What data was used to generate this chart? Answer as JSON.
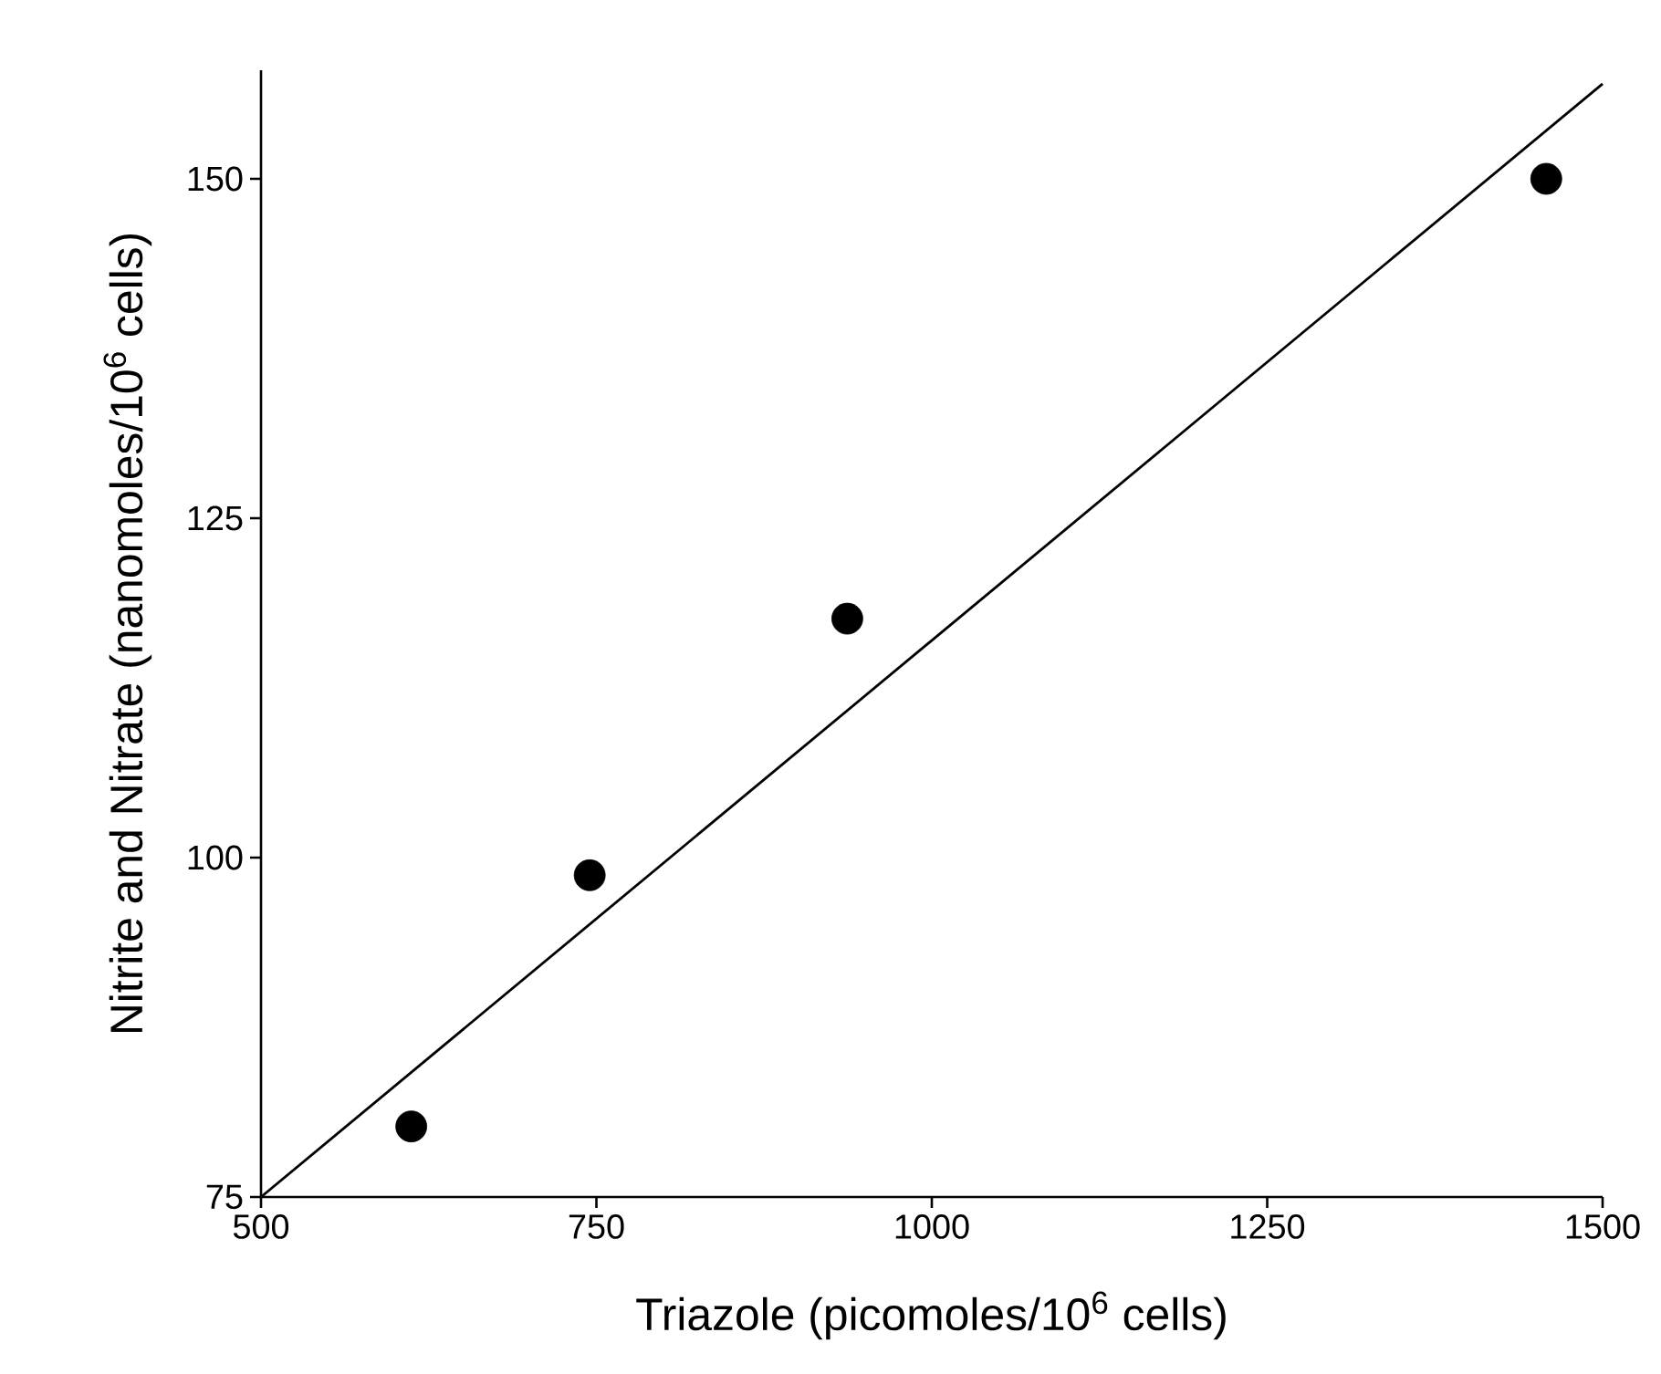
{
  "chart_data": {
    "type": "scatter",
    "xlabel": "Triazole (picomoles/10$^{6}$ cells)",
    "ylabel": "Nitrite and Nitrate (nanomoles/10$^{6}$ cells)",
    "series": [
      {
        "color": "#000000",
        "marker": "circle",
        "x": [
          612,
          745,
          937,
          1458
        ],
        "values": [
          80.2,
          98.7,
          117.6,
          150
        ]
      },
      {
        "type": "line",
        "color": "#000000",
        "marker": "none",
        "line_style": "solid",
        "x": [
          500,
          1500
        ],
        "values": [
          75,
          157
        ]
      }
    ],
    "xlim": [
      500,
      1500
    ],
    "ylim": [
      75,
      158
    ],
    "xticks": [
      500,
      750,
      1000,
      1250,
      1500
    ],
    "yticks": [
      75,
      100,
      125,
      150
    ]
  }
}
